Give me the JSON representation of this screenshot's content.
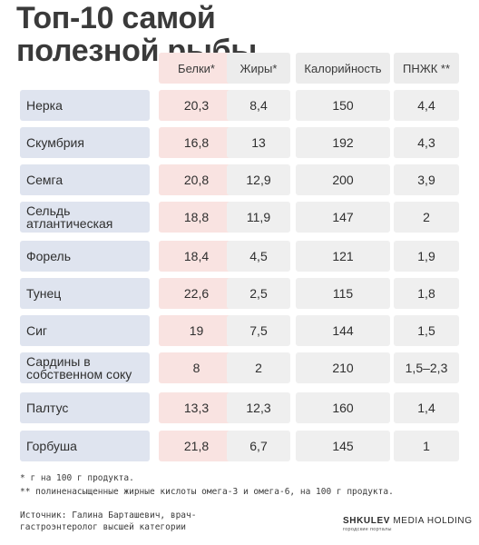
{
  "title": "Топ-10 самой полезной рыбы",
  "headers": {
    "protein": "Белки*",
    "fat": "Жиры*",
    "calories": "Калорийность",
    "pufa": "ПНЖК **"
  },
  "rows": [
    {
      "name": "Нерка",
      "protein": "20,3",
      "fat": "8,4",
      "calories": "150",
      "pufa": "4,4"
    },
    {
      "name": "Скумбрия",
      "protein": "16,8",
      "fat": "13",
      "calories": "192",
      "pufa": "4,3"
    },
    {
      "name": "Семга",
      "protein": "20,8",
      "fat": "12,9",
      "calories": "200",
      "pufa": "3,9"
    },
    {
      "name": "Сельдь атлантическая",
      "protein": "18,8",
      "fat": "11,9",
      "calories": "147",
      "pufa": "2"
    },
    {
      "name": "Форель",
      "protein": "18,4",
      "fat": "4,5",
      "calories": "121",
      "pufa": "1,9"
    },
    {
      "name": "Тунец",
      "protein": "22,6",
      "fat": "2,5",
      "calories": "115",
      "pufa": "1,8"
    },
    {
      "name": "Сиг",
      "protein": "19",
      "fat": "7,5",
      "calories": "144",
      "pufa": "1,5"
    },
    {
      "name": "Сардины в собственном соку",
      "protein": "8",
      "fat": "2",
      "calories": "210",
      "pufa": "1,5–2,3"
    },
    {
      "name": "Палтус",
      "protein": "13,3",
      "fat": "12,3",
      "calories": "160",
      "pufa": "1,4"
    },
    {
      "name": "Горбуша",
      "protein": "21,8",
      "fat": "6,7",
      "calories": "145",
      "pufa": "1"
    }
  ],
  "footnotes": {
    "note1": "* г на 100 г продукта.",
    "note2": "** полиненасыщенные жирные кислоты омега-3 и омега-6, на 100 г продукта."
  },
  "source": "Источник: Галина Барташевич, врач-гастроэнтеролог высшей категории",
  "logo": {
    "brand": "SHKULEV",
    "suffix": "MEDIA HOLDING",
    "tagline": "городские порталы"
  }
}
